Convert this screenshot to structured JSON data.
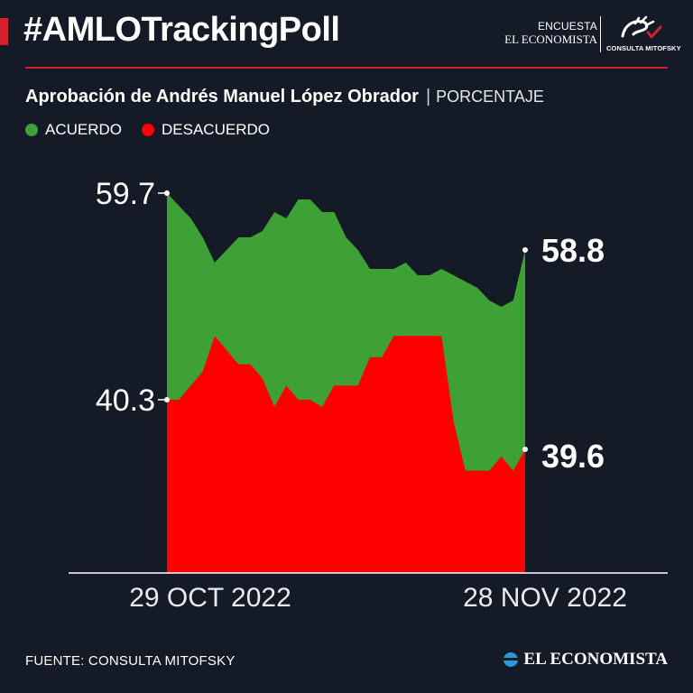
{
  "header": {
    "hashtag": "#AMLOTrackingPoll",
    "brand_top": "ENCUESTA",
    "brand_name": "EL ECONOMISTA",
    "partner_label": "CONSULTA MITOFSKY"
  },
  "colors": {
    "background": "#141b26",
    "accent": "#d3202b",
    "acuerdo": "#3ea135",
    "desacuerdo": "#ff0000"
  },
  "chart_data": {
    "type": "area",
    "title": "Aprobación de Andrés Manuel López Obrador",
    "unit": "PORCENTAJE",
    "x_start_label": "29 OCT 2022",
    "x_end_label": "28 NOV 2022",
    "x": [
      "2022-10-29",
      "2022-10-30",
      "2022-10-31",
      "2022-11-01",
      "2022-11-02",
      "2022-11-03",
      "2022-11-04",
      "2022-11-05",
      "2022-11-06",
      "2022-11-07",
      "2022-11-08",
      "2022-11-09",
      "2022-11-10",
      "2022-11-11",
      "2022-11-12",
      "2022-11-13",
      "2022-11-14",
      "2022-11-15",
      "2022-11-16",
      "2022-11-17",
      "2022-11-18",
      "2022-11-19",
      "2022-11-20",
      "2022-11-21",
      "2022-11-22",
      "2022-11-23",
      "2022-11-24",
      "2022-11-25",
      "2022-11-26",
      "2022-11-27",
      "2022-11-28"
    ],
    "series": [
      {
        "name": "ACUERDO",
        "color": "#3ea135",
        "values": [
          59.7,
          59.5,
          59.3,
          59.0,
          58.6,
          58.8,
          59.0,
          59.0,
          59.1,
          59.4,
          59.3,
          59.6,
          59.6,
          59.4,
          59.4,
          59.0,
          58.8,
          58.5,
          58.5,
          58.5,
          58.6,
          58.4,
          58.4,
          58.5,
          58.4,
          58.3,
          58.2,
          58.0,
          57.9,
          58.0,
          58.8
        ]
      },
      {
        "name": "DESACUERDO",
        "color": "#ff0000",
        "values": [
          40.3,
          40.3,
          40.5,
          40.7,
          41.2,
          41.0,
          40.8,
          40.8,
          40.6,
          40.2,
          40.5,
          40.3,
          40.3,
          40.2,
          40.5,
          40.5,
          40.5,
          40.9,
          40.9,
          41.2,
          41.2,
          41.2,
          41.2,
          41.2,
          40.0,
          39.3,
          39.3,
          39.3,
          39.5,
          39.3,
          39.6
        ]
      }
    ],
    "start_labels": {
      "acuerdo": "59.7",
      "desacuerdo": "40.3"
    },
    "end_labels": {
      "acuerdo": "58.8",
      "desacuerdo": "39.6"
    }
  },
  "footer": {
    "source": "FUENTE: CONSULTA MITOFSKY",
    "logo": "EL ECONOMISTA"
  }
}
